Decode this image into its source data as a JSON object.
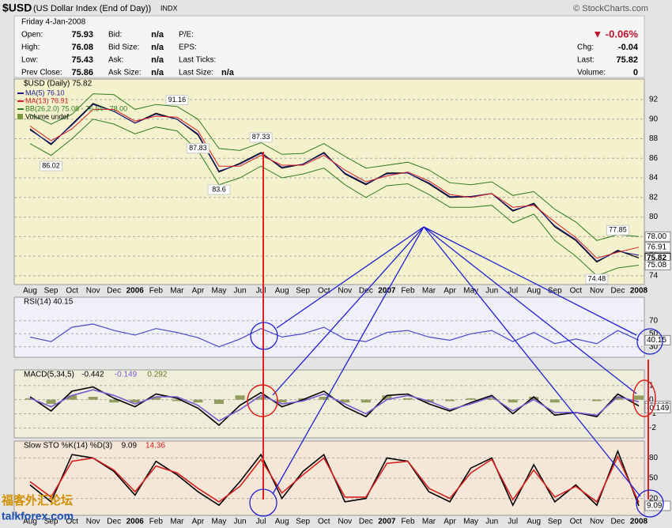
{
  "header": {
    "symbol": "$USD",
    "name": "(US Dollar Index (End of Day))",
    "exchange": "INDX",
    "credit": "© StockCharts.com",
    "date": "Friday   4-Jan-2008",
    "col1": [
      {
        "label": "Open:",
        "value": 75.93
      },
      {
        "label": "High:",
        "value": 76.08
      },
      {
        "label": "Low:",
        "value": 75.43
      },
      {
        "label": "Prev Close:",
        "value": 75.86
      }
    ],
    "col2": [
      {
        "label": "Bid:",
        "value": "n/a"
      },
      {
        "label": "Bid Size:",
        "value": "n/a"
      },
      {
        "label": "Ask:",
        "value": "n/a"
      },
      {
        "label": "Ask Size:",
        "value": "n/a"
      }
    ],
    "col3": [
      {
        "label": "P/E:"
      },
      {
        "label": "EPS:"
      },
      {
        "label": "Last Ticks:"
      },
      {
        "label": "Last Size:",
        "value": "n/a"
      }
    ],
    "change_pct": "▼ -0.06%",
    "col4": [
      {
        "label": "Chg:",
        "value": -0.04
      },
      {
        "label": "Last:",
        "value": 75.82
      },
      {
        "label": "Volume:",
        "value": 0
      }
    ]
  },
  "watermark": {
    "cn": "福客外汇论坛",
    "site": "talkforex.com"
  },
  "chart_data": [
    {
      "type": "line",
      "title": "$USD (Daily) 75.82",
      "color": "#000000",
      "volume_label": "Volume undef",
      "categories": [
        "Aug",
        "Sep",
        "Oct",
        "Nov",
        "Dec",
        "2006",
        "Feb",
        "Mar",
        "Apr",
        "May",
        "Jun",
        "Jul",
        "Aug",
        "Sep",
        "Oct",
        "Nov",
        "Dec",
        "2007",
        "Feb",
        "Mar",
        "Apr",
        "May",
        "Jun",
        "Jul",
        "Aug",
        "Sep",
        "Oct",
        "Nov",
        "Dec",
        "2008"
      ],
      "values": [
        89.0,
        87.4,
        89.5,
        91.6,
        90.8,
        89.6,
        90.6,
        90.0,
        88.4,
        84.6,
        85.5,
        86.6,
        85.0,
        85.4,
        86.6,
        84.4,
        83.3,
        84.5,
        84.5,
        83.4,
        82.0,
        82.1,
        82.4,
        80.6,
        81.4,
        79.0,
        77.6,
        75.4,
        76.6,
        75.82
      ],
      "series": [
        {
          "name": "MA(5) 76.10",
          "color": "#1a1a8c",
          "values": [
            88.9,
            87.5,
            89.4,
            91.5,
            90.8,
            89.6,
            90.5,
            90.0,
            88.5,
            84.7,
            85.4,
            86.5,
            85.1,
            85.4,
            86.5,
            84.5,
            83.4,
            84.4,
            84.5,
            83.5,
            82.1,
            82.1,
            82.4,
            80.7,
            81.3,
            79.1,
            77.7,
            75.5,
            76.5,
            76.1
          ]
        },
        {
          "name": "MA(13) 76.91",
          "color": "#d42020",
          "values": [
            89.3,
            87.8,
            89.0,
            91.0,
            91.0,
            89.8,
            90.3,
            90.2,
            88.8,
            85.2,
            85.2,
            86.3,
            85.3,
            85.3,
            86.3,
            84.8,
            83.6,
            84.2,
            84.6,
            83.7,
            82.3,
            82.0,
            82.4,
            81.0,
            81.2,
            79.5,
            77.9,
            75.8,
            76.4,
            76.91
          ]
        },
        {
          "name": "BB(26,2.0) 75.08 - 76.54 - 78.00",
          "color": "#2e7d1e",
          "upper": [
            90.5,
            89.5,
            90.5,
            92.6,
            92.5,
            91.0,
            91.5,
            91.3,
            90.0,
            87.0,
            86.8,
            87.6,
            86.4,
            86.5,
            87.5,
            86.2,
            85.0,
            85.3,
            85.6,
            84.8,
            83.5,
            83.3,
            83.6,
            82.2,
            82.6,
            80.8,
            79.5,
            77.6,
            78.2,
            78.0
          ],
          "lower": [
            87.5,
            86.3,
            88.0,
            90.0,
            89.5,
            88.5,
            89.2,
            88.8,
            86.8,
            83.3,
            84.0,
            85.2,
            84.0,
            84.4,
            85.0,
            83.3,
            82.0,
            83.2,
            83.4,
            82.3,
            81.0,
            81.0,
            81.2,
            79.4,
            80.3,
            77.6,
            76.0,
            74.0,
            74.8,
            75.08
          ]
        }
      ],
      "swing_labels": [
        null,
        86.02,
        null,
        null,
        null,
        null,
        null,
        91.16,
        87.83,
        83.6,
        null,
        87.33,
        null,
        null,
        null,
        null,
        null,
        null,
        null,
        null,
        null,
        null,
        null,
        null,
        null,
        null,
        null,
        74.48,
        77.85,
        null
      ],
      "last_labels": [
        {
          "value": 78,
          "label": "78.00"
        },
        {
          "value": 76.91,
          "label": "76.91"
        },
        {
          "value": 75.82,
          "label": "75.82"
        },
        {
          "value": 75.08,
          "label": "75.08"
        }
      ],
      "ylim": [
        73.1,
        94.1
      ],
      "yticks": [
        74,
        76,
        78,
        80,
        82,
        84,
        86,
        88,
        90,
        92
      ],
      "grid": true
    },
    {
      "type": "line",
      "title": "RSI(14) 40.15",
      "color": "#4a4ad0",
      "values": [
        45,
        38,
        60,
        65,
        55,
        48,
        58,
        52,
        44,
        30,
        42,
        58,
        45,
        50,
        60,
        42,
        38,
        52,
        55,
        45,
        40,
        50,
        55,
        38,
        52,
        35,
        42,
        35,
        55,
        40.15
      ],
      "last_labels": [
        40.15
      ],
      "ylim": [
        14,
        106
      ],
      "yticks": [
        30,
        50,
        70
      ],
      "grid": true
    },
    {
      "type": "line",
      "title": "MACD(5,34,5)",
      "series": [
        {
          "name": "-0.442",
          "color": "#000000",
          "values": [
            0.2,
            -0.8,
            0.6,
            0.9,
            0.1,
            -0.5,
            0.4,
            0.1,
            -0.6,
            -1.8,
            -0.4,
            0.5,
            -0.5,
            0.0,
            0.6,
            -0.5,
            -1.2,
            0.3,
            0.4,
            -0.3,
            -0.8,
            -0.2,
            0.3,
            -1.0,
            0.2,
            -1.1,
            -0.9,
            -1.2,
            0.4,
            -0.442
          ]
        },
        {
          "name": "-0.149",
          "color": "#7a5ad0",
          "values": [
            0.1,
            -0.5,
            0.3,
            0.7,
            0.3,
            -0.3,
            0.2,
            0.2,
            -0.4,
            -1.5,
            -0.7,
            0.3,
            -0.3,
            -0.1,
            0.4,
            -0.3,
            -1.0,
            0.0,
            0.3,
            -0.1,
            -0.7,
            -0.3,
            0.2,
            -0.8,
            0.0,
            -0.9,
            -0.9,
            -1.1,
            0.2,
            -0.149
          ]
        },
        {
          "name": "0.292",
          "color": "#6b7a2a",
          "kind": "histogram",
          "values": [
            0.1,
            -0.3,
            0.3,
            0.2,
            -0.2,
            -0.2,
            0.2,
            -0.1,
            -0.2,
            -0.3,
            0.3,
            0.2,
            -0.2,
            0.1,
            0.2,
            -0.2,
            -0.2,
            0.3,
            0.1,
            -0.2,
            -0.1,
            0.1,
            0.1,
            -0.2,
            0.2,
            -0.2,
            0,
            -0.1,
            0.2,
            0.292
          ]
        }
      ],
      "last_labels": [
        -0.442,
        -0.149
      ],
      "ylim": [
        -2.7,
        2.1
      ],
      "yticks": [
        -2,
        -1,
        0,
        1
      ],
      "grid": true
    },
    {
      "type": "line",
      "title": "Slow STO %K(14) %D(3)",
      "series": [
        {
          "name": "9.09",
          "color": "#000000",
          "values": [
            40,
            15,
            85,
            80,
            60,
            25,
            75,
            55,
            30,
            10,
            45,
            85,
            20,
            60,
            85,
            15,
            20,
            80,
            75,
            30,
            15,
            65,
            80,
            10,
            70,
            15,
            40,
            10,
            90,
            9.09
          ]
        },
        {
          "name": "14.36",
          "color": "#d42020",
          "values": [
            45,
            22,
            75,
            80,
            62,
            30,
            68,
            58,
            35,
            15,
            38,
            78,
            28,
            55,
            80,
            22,
            22,
            72,
            75,
            35,
            20,
            58,
            78,
            18,
            62,
            22,
            38,
            15,
            82,
            14.36
          ]
        }
      ],
      "last_labels": [
        9.09
      ],
      "ylim": [
        -5,
        105
      ],
      "yticks": [
        20,
        50,
        80
      ],
      "grid": true
    }
  ]
}
